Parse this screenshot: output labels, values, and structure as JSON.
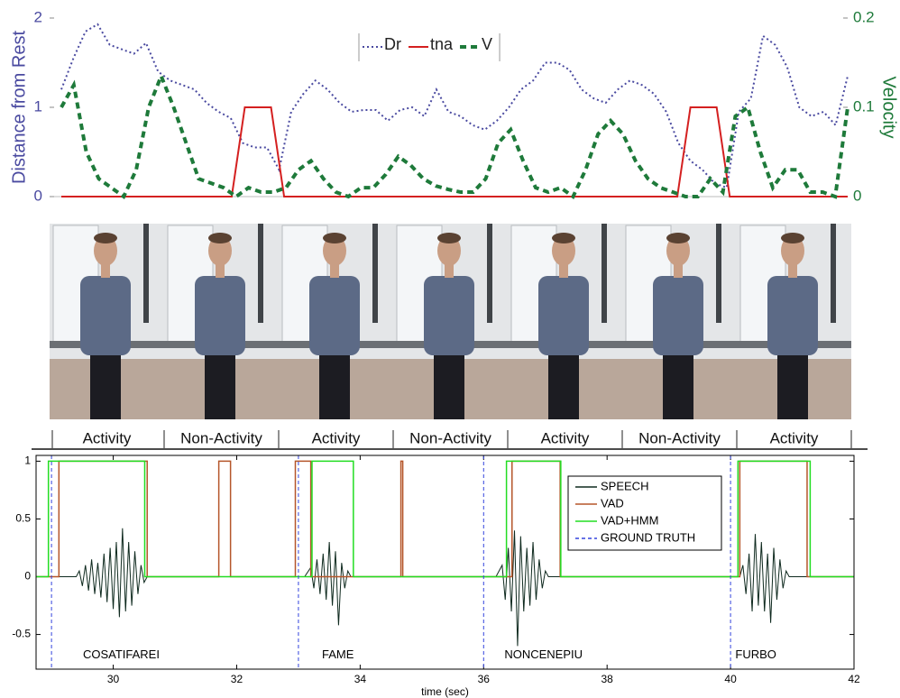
{
  "chart_data": [
    {
      "type": "line",
      "ylabel": "Distance from Rest",
      "y2label": "Velocity",
      "ylim": [
        0,
        2
      ],
      "yticks": [
        0,
        1,
        2
      ],
      "y2lim": [
        0,
        0.2
      ],
      "y2ticks": [
        0,
        0.1,
        0.2
      ],
      "legend": "top",
      "series": [
        {
          "name": "Dr",
          "color": "#4a4aa0",
          "style": "dotted",
          "values": [
            1.2,
            1.55,
            1.85,
            1.93,
            1.7,
            1.65,
            1.6,
            1.72,
            1.4,
            1.3,
            1.25,
            1.2,
            1.05,
            0.95,
            0.88,
            0.6,
            0.55,
            0.55,
            0.3,
            0.95,
            1.15,
            1.3,
            1.2,
            1.05,
            0.95,
            0.97,
            0.97,
            0.85,
            0.97,
            1.0,
            0.9,
            1.2,
            0.95,
            0.9,
            0.8,
            0.75,
            0.85,
            1.0,
            1.2,
            1.3,
            1.5,
            1.5,
            1.42,
            1.2,
            1.1,
            1.05,
            1.2,
            1.3,
            1.25,
            1.15,
            0.95,
            0.6,
            0.4,
            0.3,
            0.15,
            0.1,
            0.95,
            1.1,
            1.8,
            1.7,
            1.45,
            1.0,
            0.9,
            0.95,
            0.8,
            1.35
          ]
        },
        {
          "name": "tna",
          "color": "#d42020",
          "style": "solid",
          "values": [
            0,
            0,
            0,
            0,
            0,
            0,
            0,
            0,
            0,
            0,
            0,
            0,
            0,
            0,
            1,
            1,
            1,
            0,
            0,
            0,
            0,
            0,
            0,
            0,
            0,
            0,
            0,
            0,
            0,
            0,
            0,
            0,
            0,
            0,
            0,
            0,
            0,
            0,
            0,
            0,
            0,
            0,
            0,
            0,
            0,
            0,
            0,
            0,
            1,
            1,
            1,
            0,
            0,
            0,
            0,
            0,
            0,
            0,
            0,
            0,
            0
          ]
        },
        {
          "name": "V",
          "color": "#1e7a3a",
          "style": "dashed",
          "axis": "y2",
          "values": [
            0.1,
            0.125,
            0.05,
            0.02,
            0.01,
            0,
            0.03,
            0.1,
            0.135,
            0.1,
            0.06,
            0.02,
            0.015,
            0.01,
            0,
            0.01,
            0.005,
            0.005,
            0.01,
            0.03,
            0.04,
            0.02,
            0.005,
            0,
            0.01,
            0.01,
            0.025,
            0.045,
            0.035,
            0.02,
            0.012,
            0.008,
            0.005,
            0.005,
            0.02,
            0.06,
            0.075,
            0.04,
            0.01,
            0.005,
            0.01,
            0,
            0.03,
            0.07,
            0.085,
            0.07,
            0.04,
            0.02,
            0.01,
            0.005,
            0,
            0,
            0.02,
            0.005,
            0.09,
            0.1,
            0.05,
            0.01,
            0.03,
            0.03,
            0.005,
            0.005,
            0,
            0.1
          ]
        }
      ]
    },
    {
      "type": "line",
      "xlabel": "time (sec)",
      "xlim": [
        28.75,
        42
      ],
      "xticks": [
        30,
        32,
        34,
        36,
        38,
        40,
        42
      ],
      "ylim": [
        -0.8,
        1.05
      ],
      "yticks": [
        -0.5,
        0,
        0.5,
        1
      ],
      "legend": "upper right",
      "series": [
        {
          "name": "SPEECH",
          "color": "#0f2a1f",
          "style": "solid",
          "x": [
            28.75,
            29.4,
            29.45,
            29.5,
            29.55,
            29.6,
            29.65,
            29.7,
            29.75,
            29.8,
            29.85,
            29.9,
            29.95,
            30.0,
            30.05,
            30.1,
            30.15,
            30.2,
            30.25,
            30.3,
            30.35,
            30.4,
            30.45,
            30.5,
            30.55,
            33.1,
            33.2,
            33.25,
            33.3,
            33.35,
            33.4,
            33.45,
            33.5,
            33.55,
            33.6,
            33.65,
            33.7,
            33.75,
            33.8,
            33.85,
            36.2,
            36.3,
            36.35,
            36.4,
            36.45,
            36.5,
            36.55,
            36.6,
            36.65,
            36.7,
            36.75,
            36.8,
            36.85,
            36.9,
            36.95,
            37.0,
            37.05,
            40.15,
            40.2,
            40.25,
            40.3,
            40.35,
            40.4,
            40.45,
            40.5,
            40.55,
            40.6,
            40.65,
            40.7,
            40.75,
            40.8,
            40.85,
            40.9,
            40.95,
            42
          ],
          "values": [
            0,
            0,
            0.05,
            -0.08,
            0.1,
            -0.12,
            0.15,
            -0.15,
            0.12,
            -0.18,
            0.2,
            -0.22,
            0.25,
            -0.28,
            0.3,
            -0.35,
            0.42,
            -0.3,
            0.3,
            -0.25,
            0.22,
            -0.15,
            0.1,
            -0.05,
            0,
            0,
            0.08,
            -0.1,
            0.15,
            -0.15,
            0.2,
            -0.2,
            0.3,
            -0.25,
            0.22,
            -0.42,
            0.12,
            -0.1,
            0.05,
            0,
            0,
            0.1,
            -0.2,
            0.25,
            -0.3,
            0.4,
            -0.6,
            0.35,
            -0.3,
            0.25,
            -0.25,
            0.3,
            -0.2,
            0.15,
            -0.1,
            0.05,
            0,
            0,
            0.1,
            -0.15,
            0.2,
            -0.3,
            0.37,
            -0.25,
            0.3,
            -0.3,
            0.2,
            -0.4,
            0.25,
            -0.2,
            0.15,
            -0.1,
            0.05,
            0,
            0
          ]
        },
        {
          "name": "VAD",
          "color": "#b5562a",
          "style": "solid",
          "x": [
            28.75,
            29.12,
            29.12,
            30.55,
            30.55,
            31.71,
            31.71,
            31.9,
            31.9,
            32.95,
            32.95,
            33.2,
            33.2,
            34.66,
            34.66,
            34.69,
            34.69,
            36.46,
            36.46,
            37.24,
            37.24,
            40.15,
            40.15,
            41.24,
            41.24,
            42
          ],
          "values": [
            0,
            0,
            1,
            1,
            0,
            0,
            1,
            1,
            0,
            0,
            1,
            1,
            0,
            0,
            1,
            1,
            0,
            0,
            1,
            1,
            0,
            0,
            1,
            1,
            0,
            0
          ]
        },
        {
          "name": "VAD+HMM",
          "color": "#22dd22",
          "style": "solid",
          "x": [
            28.75,
            28.95,
            28.95,
            30.51,
            30.51,
            33.22,
            33.22,
            33.89,
            33.89,
            36.37,
            36.37,
            37.25,
            37.25,
            40.12,
            40.12,
            41.29,
            41.29,
            42
          ],
          "values": [
            0,
            0,
            1,
            1,
            0,
            0,
            1,
            1,
            0,
            0,
            1,
            1,
            0,
            0,
            1,
            1,
            0,
            0
          ]
        },
        {
          "name": "GROUND TRUTH",
          "color": "#3344dd",
          "style": "vline",
          "x": [
            29,
            33,
            36,
            40
          ]
        }
      ],
      "annotations": [
        {
          "text": "COSATIFAREI",
          "x": 30.13,
          "y": -0.68
        },
        {
          "text": "FAME",
          "x": 33.64,
          "y": -0.68
        },
        {
          "text": "NONCENEPIU",
          "x": 36.97,
          "y": -0.68
        },
        {
          "text": "FURBO",
          "x": 40.41,
          "y": -0.68
        }
      ]
    }
  ],
  "frames": {
    "labels": [
      "Activity",
      "Non-Activity",
      "Activity",
      "Non-Activity",
      "Activity",
      "Non-Activity",
      "Activity"
    ]
  }
}
